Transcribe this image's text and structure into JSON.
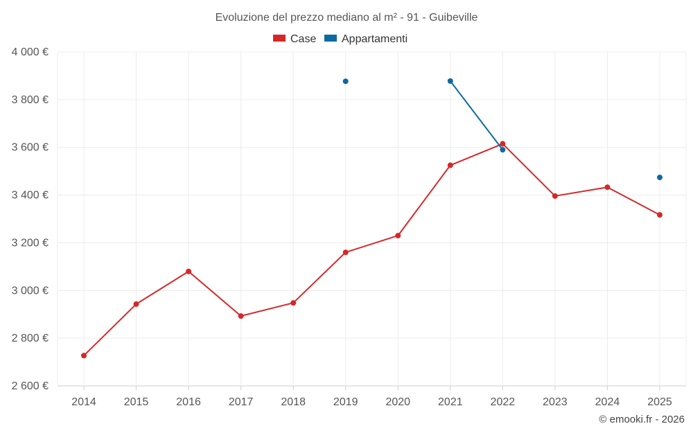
{
  "chart_data": {
    "type": "line",
    "title": "Evoluzione del prezzo mediano al m² - 91 - Guibeville",
    "categories": [
      "2014",
      "2015",
      "2016",
      "2017",
      "2018",
      "2019",
      "2020",
      "2021",
      "2022",
      "2023",
      "2024",
      "2025"
    ],
    "ylim": [
      2600,
      4000
    ],
    "yticks": [
      2600,
      2800,
      3000,
      3200,
      3400,
      3600,
      3800,
      4000
    ],
    "ytick_labels": [
      "2 600 €",
      "2 800 €",
      "3 000 €",
      "3 200 €",
      "3 400 €",
      "3 600 €",
      "3 800 €",
      "4 000 €"
    ],
    "legend_position": "top-center",
    "grid": true,
    "series": [
      {
        "name": "Case",
        "color": "#d62728",
        "values": [
          2727,
          2943,
          3080,
          2893,
          2948,
          3160,
          3230,
          3525,
          3615,
          3396,
          3433,
          3317
        ]
      },
      {
        "name": "Appartamenti",
        "color": "#0d6aa0",
        "values": [
          null,
          null,
          null,
          null,
          null,
          3877,
          null,
          3878,
          3590,
          null,
          null,
          3474
        ]
      }
    ]
  },
  "footer": {
    "credit": "© emooki.fr - 2026"
  }
}
